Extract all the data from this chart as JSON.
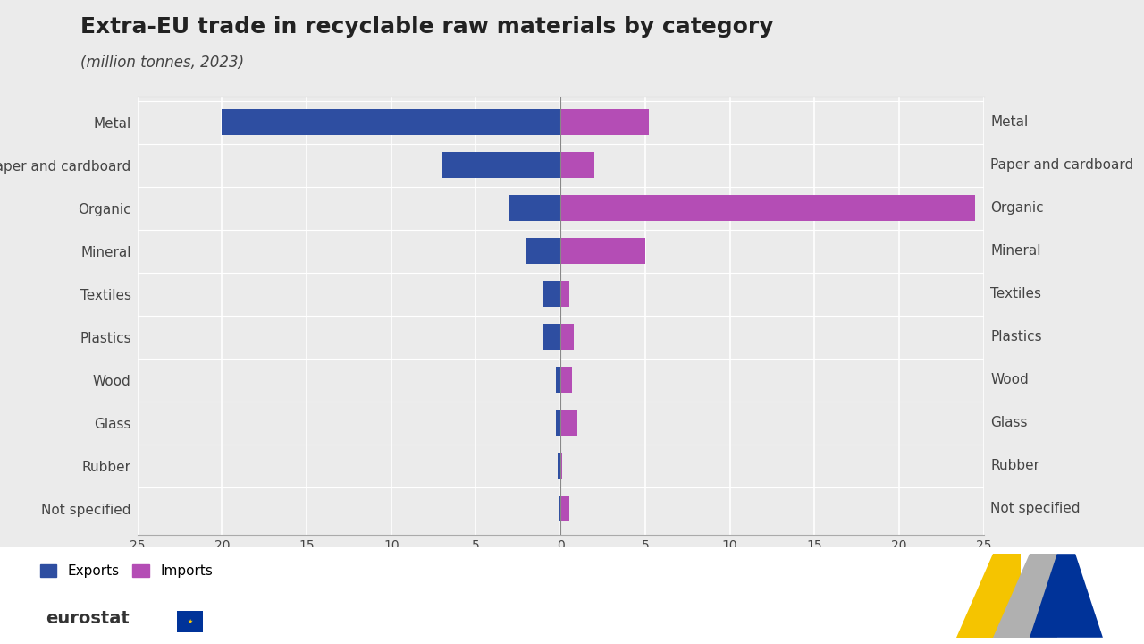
{
  "title": "Extra-EU trade in recyclable raw materials by category",
  "subtitle": "(million tonnes, 2023)",
  "categories": [
    "Metal",
    "Paper and cardboard",
    "Organic",
    "Mineral",
    "Textiles",
    "Plastics",
    "Wood",
    "Glass",
    "Rubber",
    "Not specified"
  ],
  "exports": [
    20.0,
    7.0,
    3.0,
    2.0,
    1.0,
    1.0,
    0.3,
    0.3,
    0.15,
    0.1
  ],
  "imports": [
    5.2,
    2.0,
    24.5,
    5.0,
    0.5,
    0.8,
    0.7,
    1.0,
    0.1,
    0.5
  ],
  "export_color": "#2e4ea1",
  "import_color": "#b44db5",
  "background_color": "#ebebeb",
  "plot_background": "#ebebeb",
  "bottom_background": "#ffffff",
  "xlim": 25,
  "legend_export_label": "Exports",
  "legend_import_label": "Imports",
  "title_fontsize": 18,
  "subtitle_fontsize": 12,
  "label_fontsize": 11,
  "tick_fontsize": 10,
  "bar_height": 0.6
}
